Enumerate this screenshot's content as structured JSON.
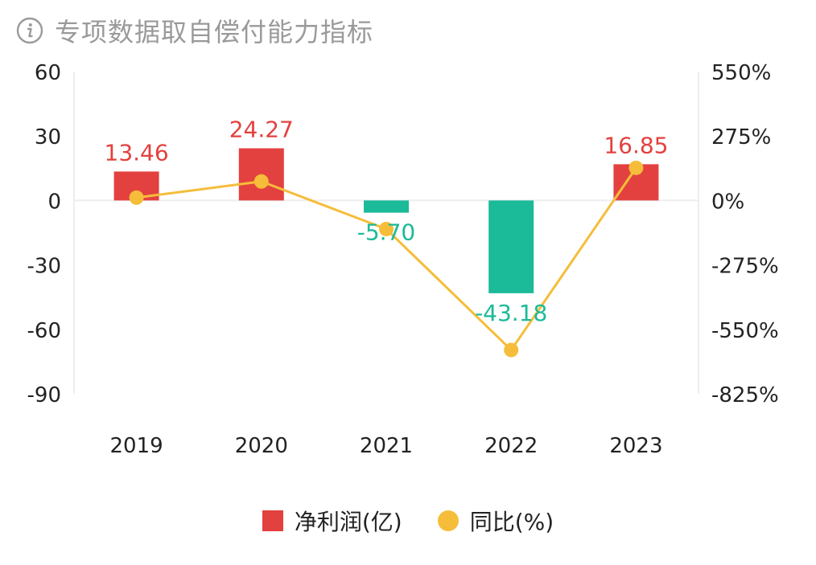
{
  "header": {
    "title": "专项数据取自偿付能力指标",
    "icon": "info-icon"
  },
  "colors": {
    "positive": "#e3413f",
    "negative": "#1bba98",
    "line": "#f5bd3a",
    "axis_text": "#222222",
    "grid": "#eeeeee"
  },
  "chart_data": {
    "type": "bar",
    "categories": [
      "2019",
      "2020",
      "2021",
      "2022",
      "2023"
    ],
    "series": [
      {
        "name": "净利润(亿)",
        "type": "bar",
        "axis": "left",
        "values": [
          13.46,
          24.27,
          -5.7,
          -43.18,
          16.85
        ],
        "labels": [
          "13.46",
          "24.27",
          "-5.70",
          "-43.18",
          "16.85"
        ]
      },
      {
        "name": "同比(%)",
        "type": "line",
        "axis": "right",
        "values": [
          12,
          81,
          -122,
          -638,
          139
        ]
      }
    ],
    "y_left": {
      "ticks": [
        60,
        30,
        0,
        -30,
        -60,
        -90
      ],
      "tick_labels": [
        "60",
        "30",
        "0",
        "-30",
        "-60",
        "-90"
      ],
      "ylim": [
        -90,
        60
      ]
    },
    "y_right": {
      "ticks": [
        550,
        275,
        0,
        -275,
        -550,
        -825
      ],
      "tick_labels": [
        "550%",
        "275%",
        "0%",
        "-275%",
        "-550%",
        "-825%"
      ],
      "ylim": [
        -825,
        550
      ]
    },
    "grid": "zero-line only",
    "legend_position": "bottom"
  }
}
